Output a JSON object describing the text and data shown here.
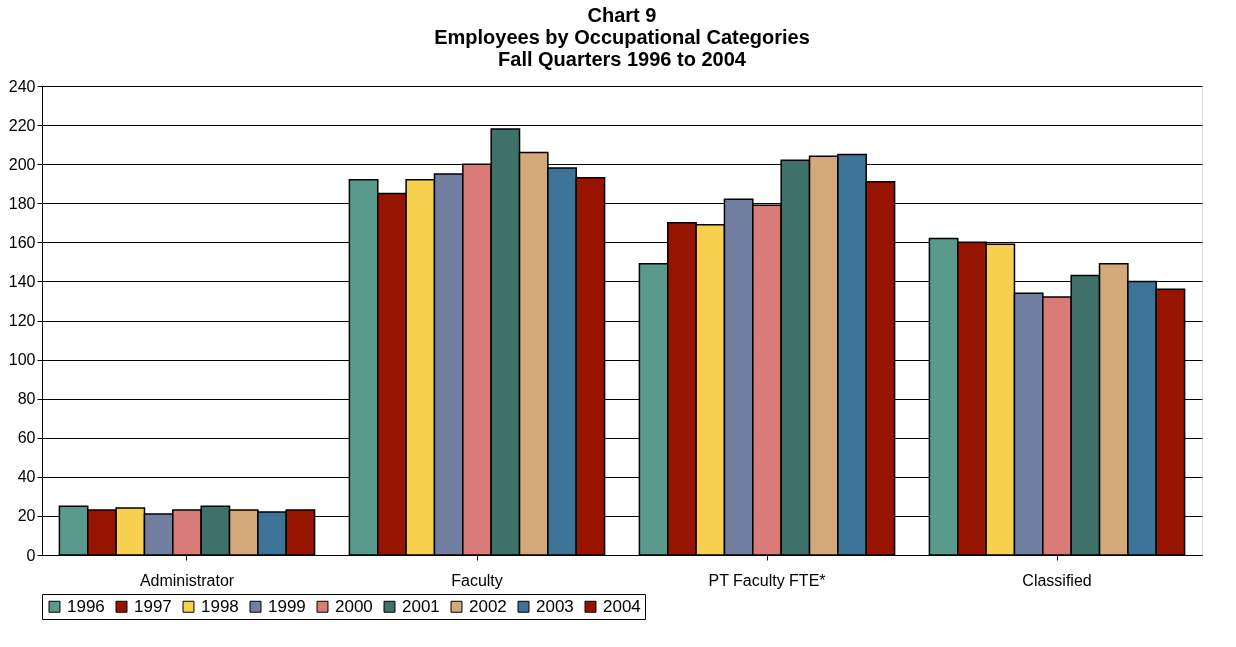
{
  "chart_data": {
    "type": "bar",
    "title": "Chart 9\nEmployees by Occupational Categories\nFall Quarters 1996 to 2004",
    "categories": [
      "Administrator",
      "Faculty",
      "PT Faculty FTE*",
      "Classified"
    ],
    "series": [
      {
        "name": "1996",
        "color": "#5a9a8c",
        "values": [
          25,
          192,
          149,
          162
        ]
      },
      {
        "name": "1997",
        "color": "#961400",
        "values": [
          23,
          185,
          170,
          160
        ]
      },
      {
        "name": "1998",
        "color": "#f7d04f",
        "values": [
          24,
          192,
          169,
          159
        ]
      },
      {
        "name": "1999",
        "color": "#727fa0",
        "values": [
          21,
          195,
          182,
          134
        ]
      },
      {
        "name": "2000",
        "color": "#d97b78",
        "values": [
          23,
          200,
          179,
          132
        ]
      },
      {
        "name": "2001",
        "color": "#3e7169",
        "values": [
          25,
          218,
          202,
          143
        ]
      },
      {
        "name": "2002",
        "color": "#d4a97a",
        "values": [
          23,
          206,
          204,
          149
        ]
      },
      {
        "name": "2003",
        "color": "#3c7397",
        "values": [
          22,
          198,
          205,
          140
        ]
      },
      {
        "name": "2004",
        "color": "#961400",
        "values": [
          23,
          193,
          191,
          136
        ]
      }
    ],
    "ylim": [
      0,
      240
    ],
    "yticks": [
      0,
      20,
      40,
      60,
      80,
      100,
      120,
      140,
      160,
      180,
      200,
      220,
      240
    ],
    "grid": "y",
    "legend": "bottom"
  }
}
